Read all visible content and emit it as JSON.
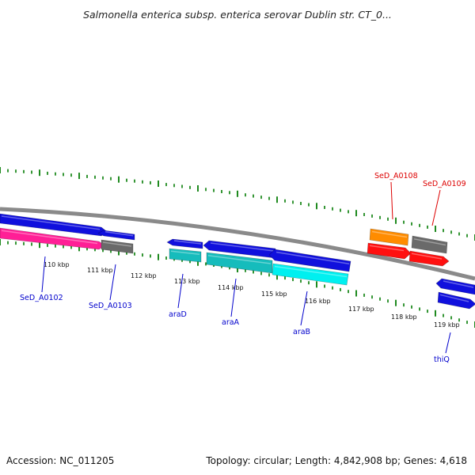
{
  "title": "Salmonella enterica subsp. enterica serovar Dublin str. CT_0...",
  "footer": {
    "accession": "Accession: NC_011205",
    "topology": "Topology: circular; Length: 4,842,908 bp; Genes: 4,618"
  },
  "colors": {
    "backbone": "#8a8a8a",
    "tick": "#1f8a1f",
    "label_blue": "#0000cc",
    "label_red": "#dd0000",
    "cds_blue": "#1010dd",
    "magenta": "#ff1f96",
    "gray": "#6a6a6a",
    "teal": "#16bcbc",
    "cyan": "#00f0f0",
    "orange": "#ff8c00",
    "red": "#ff1010"
  },
  "scale_labels": [
    "110 kbp",
    "111 kbp",
    "112 kbp",
    "113 kbp",
    "114 kbp",
    "115 kbp",
    "116 kbp",
    "117 kbp",
    "118 kbp",
    "119 kbp"
  ],
  "features": [
    {
      "id": "f1",
      "color": "cds_blue",
      "arrow": "right"
    },
    {
      "id": "f2",
      "color": "magenta",
      "arrow": "right"
    },
    {
      "id": "f3",
      "color": "cds_blue",
      "arrow": "left"
    },
    {
      "id": "f4",
      "color": "gray",
      "arrow": "none"
    },
    {
      "id": "f5",
      "color": "cds_blue",
      "arrow": "left"
    },
    {
      "id": "f6",
      "color": "teal",
      "arrow": "none"
    },
    {
      "id": "f7",
      "color": "cds_blue",
      "arrow": "left"
    },
    {
      "id": "f8",
      "color": "teal",
      "arrow": "none"
    },
    {
      "id": "f9",
      "color": "cds_blue",
      "arrow": "left"
    },
    {
      "id": "f10",
      "color": "cyan",
      "arrow": "none"
    },
    {
      "id": "f11",
      "color": "orange",
      "arrow": "none"
    },
    {
      "id": "f12",
      "color": "red",
      "arrow": "right"
    },
    {
      "id": "f13",
      "color": "gray",
      "arrow": "none"
    },
    {
      "id": "f14",
      "color": "red",
      "arrow": "right"
    },
    {
      "id": "f15",
      "color": "cds_blue",
      "arrow": "left"
    },
    {
      "id": "f16",
      "color": "cds_blue",
      "arrow": "right"
    }
  ],
  "gene_labels": [
    {
      "name": "SeD_A0102",
      "color": "label_blue"
    },
    {
      "name": "SeD_A0103",
      "color": "label_blue"
    },
    {
      "name": "araD",
      "color": "label_blue"
    },
    {
      "name": "araA",
      "color": "label_blue"
    },
    {
      "name": "araB",
      "color": "label_blue"
    },
    {
      "name": "thiQ",
      "color": "label_blue"
    },
    {
      "name": "SeD_A0108",
      "color": "label_red"
    },
    {
      "name": "SeD_A0109",
      "color": "label_red"
    }
  ]
}
